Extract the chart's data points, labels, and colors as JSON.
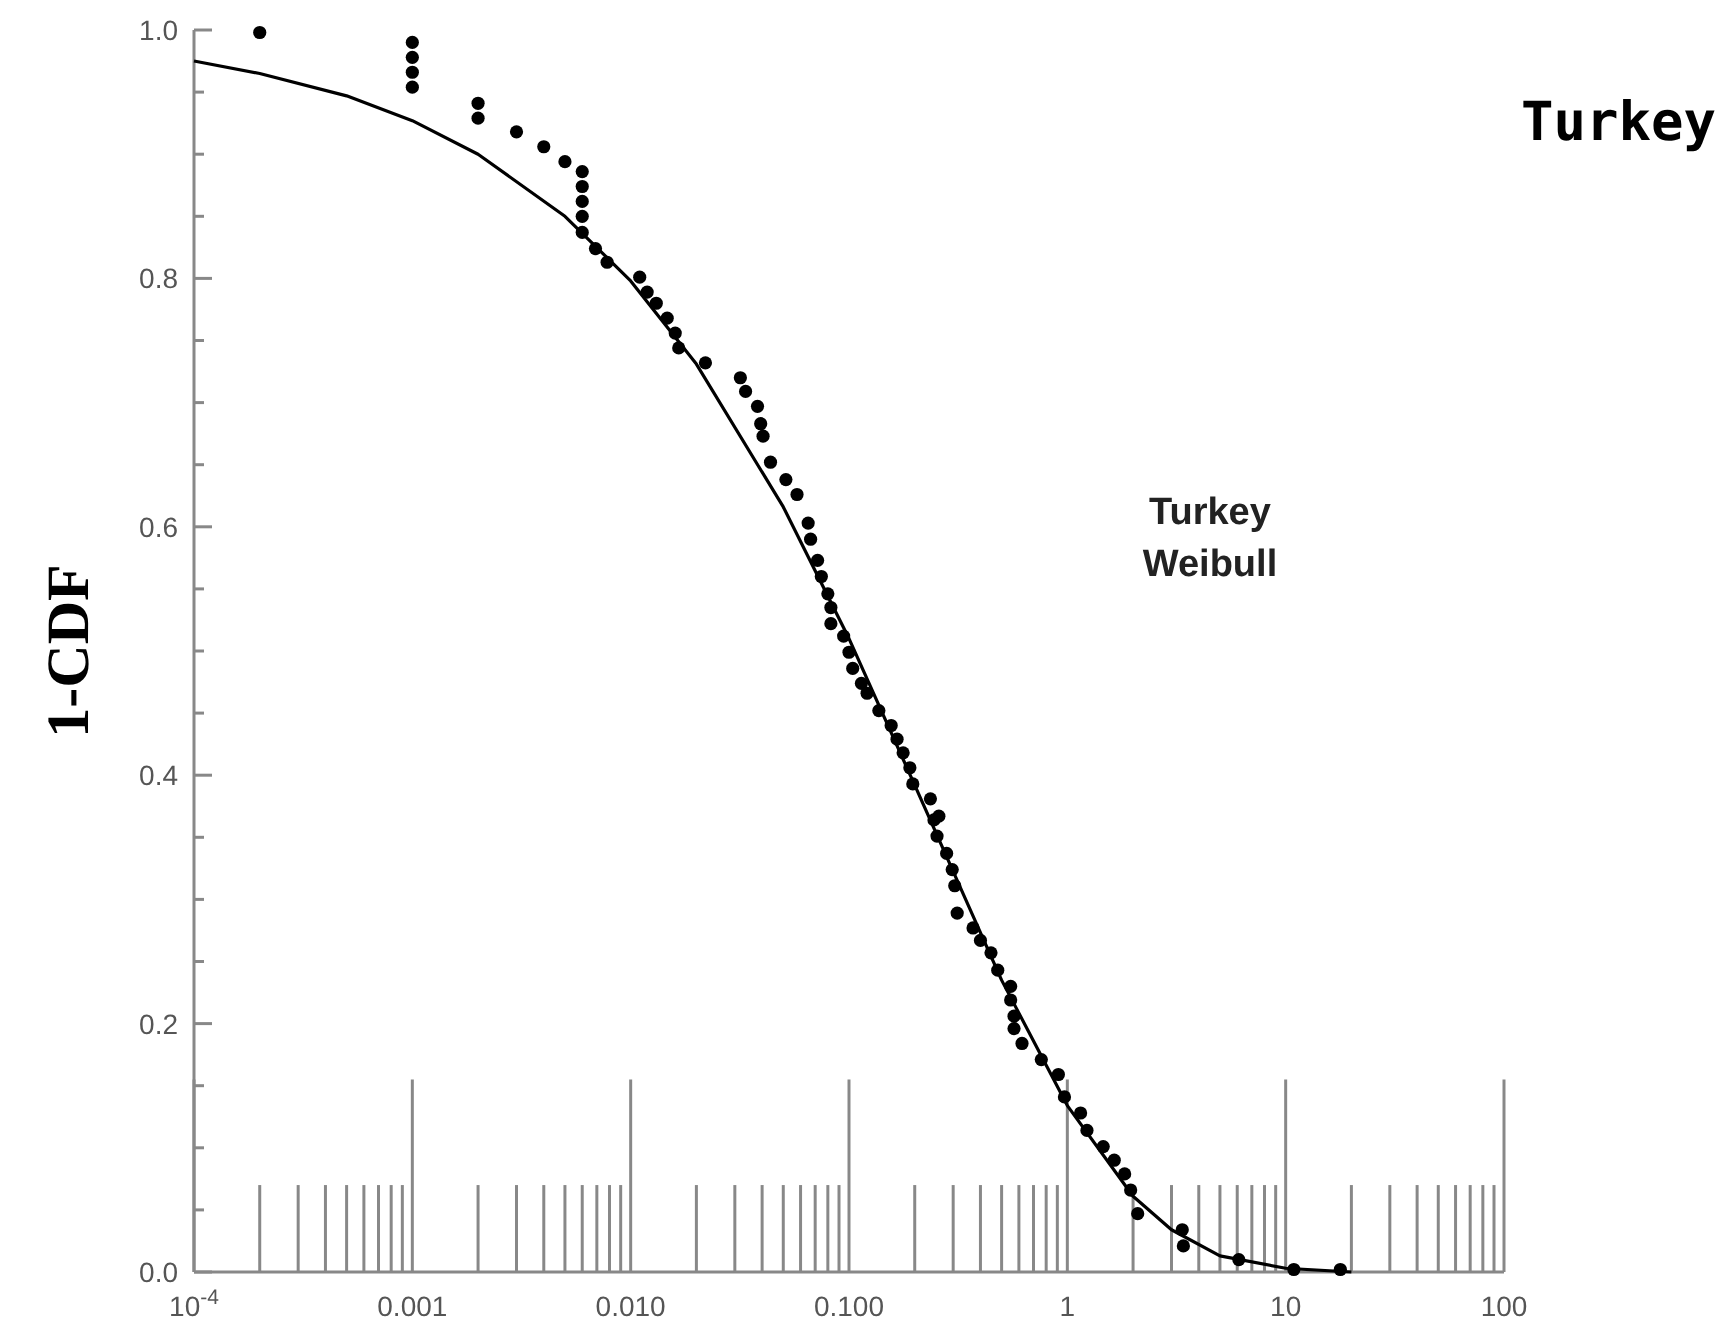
{
  "chart_data": {
    "type": "scatter",
    "title": "Turkey",
    "ylabel": "1-CDF",
    "annotations": [
      "Turkey\nWeibull"
    ],
    "log": "x",
    "grid": false,
    "xlim": [
      0.0001,
      100
    ],
    "ylim": [
      0,
      1
    ],
    "xticks": [
      {
        "value": 0.0001,
        "label": "10$^{-4}$"
      },
      {
        "value": 0.0002,
        "label": null
      },
      {
        "value": 0.0003,
        "label": null
      },
      {
        "value": 0.0004,
        "label": null
      },
      {
        "value": 0.0005,
        "label": null
      },
      {
        "value": 0.0006,
        "label": null
      },
      {
        "value": 0.0007,
        "label": null
      },
      {
        "value": 0.0008,
        "label": null
      },
      {
        "value": 0.0009,
        "label": null
      },
      {
        "value": 0.001,
        "label": "0.001"
      },
      {
        "value": 0.002,
        "label": null
      },
      {
        "value": 0.003,
        "label": null
      },
      {
        "value": 0.004,
        "label": null
      },
      {
        "value": 0.005,
        "label": null
      },
      {
        "value": 0.006,
        "label": null
      },
      {
        "value": 0.007,
        "label": null
      },
      {
        "value": 0.008,
        "label": null
      },
      {
        "value": 0.009,
        "label": null
      },
      {
        "value": 0.01,
        "label": "0.010"
      },
      {
        "value": 0.02,
        "label": null
      },
      {
        "value": 0.03,
        "label": null
      },
      {
        "value": 0.04,
        "label": null
      },
      {
        "value": 0.05,
        "label": null
      },
      {
        "value": 0.06,
        "label": null
      },
      {
        "value": 0.07,
        "label": null
      },
      {
        "value": 0.08,
        "label": null
      },
      {
        "value": 0.09,
        "label": null
      },
      {
        "value": 0.1,
        "label": "0.100"
      },
      {
        "value": 0.2,
        "label": null
      },
      {
        "value": 0.3,
        "label": null
      },
      {
        "value": 0.4,
        "label": null
      },
      {
        "value": 0.5,
        "label": null
      },
      {
        "value": 0.6,
        "label": null
      },
      {
        "value": 0.7,
        "label": null
      },
      {
        "value": 0.8,
        "label": null
      },
      {
        "value": 0.9,
        "label": null
      },
      1,
      {
        "value": 2,
        "label": null
      },
      {
        "value": 3,
        "label": null
      },
      {
        "value": 4,
        "label": null
      },
      {
        "value": 5,
        "label": null
      },
      {
        "value": 6,
        "label": null
      },
      {
        "value": 7,
        "label": null
      },
      {
        "value": 8,
        "label": null
      },
      {
        "value": 9,
        "label": null
      },
      10,
      {
        "value": 20,
        "label": null
      },
      {
        "value": 30,
        "label": null
      },
      {
        "value": 40,
        "label": null
      },
      {
        "value": 50,
        "label": null
      },
      {
        "value": 60,
        "label": null
      },
      {
        "value": 70,
        "label": null
      },
      {
        "value": 80,
        "label": null
      },
      {
        "value": 90,
        "label": null
      },
      100
    ],
    "yticks": [
      {
        "value": 0,
        "label": "0.0"
      },
      {
        "value": 0.05,
        "label": null
      },
      {
        "value": 0.1,
        "label": null
      },
      {
        "value": 0.15,
        "label": null
      },
      0.2,
      {
        "value": 0.25,
        "label": null
      },
      {
        "value": 0.3,
        "label": null
      },
      {
        "value": 0.35,
        "label": null
      },
      0.4,
      {
        "value": 0.45,
        "label": null
      },
      {
        "value": 0.5,
        "label": null
      },
      {
        "value": 0.55,
        "label": null
      },
      0.6,
      {
        "value": 0.65,
        "label": null
      },
      {
        "value": 0.7,
        "label": null
      },
      {
        "value": 0.75,
        "label": null
      },
      0.8,
      {
        "value": 0.85,
        "label": null
      },
      {
        "value": 0.9,
        "label": null
      },
      {
        "value": 0.95,
        "label": null
      },
      {
        "value": 1,
        "label": "1.0"
      }
    ],
    "series": [
      {
        "type": "scatter",
        "color": "#000000",
        "marker": "circle",
        "x": [
          0.0002,
          0.001,
          0.001,
          0.001,
          0.001,
          0.002,
          0.002,
          0.003,
          0.004,
          0.005,
          0.006,
          0.006,
          0.006,
          0.006,
          0.006,
          0.0069,
          0.0078,
          0.011,
          0.0119,
          0.0131,
          0.0147,
          0.016,
          0.0166,
          0.022,
          0.0318,
          0.0336,
          0.0381,
          0.0394,
          0.0404,
          0.0437,
          0.0514,
          0.0578,
          0.065,
          0.0667,
          0.0718,
          0.0747,
          0.08,
          0.0826,
          0.0826,
          0.0945,
          0.1,
          0.104,
          0.114,
          0.121,
          0.137,
          0.156,
          0.166,
          0.177,
          0.19,
          0.196,
          0.236,
          0.245,
          0.258,
          0.253,
          0.28,
          0.297,
          0.305,
          0.313,
          0.37,
          0.4,
          0.447,
          0.48,
          0.55,
          0.55,
          0.57,
          0.57,
          0.62,
          0.76,
          0.91,
          0.97,
          1.15,
          1.23,
          1.46,
          1.64,
          1.83,
          1.95,
          2.1,
          3.36,
          3.4,
          6.1,
          10.9,
          17.8
        ],
        "values": [
          0.998,
          0.99,
          0.978,
          0.966,
          0.954,
          0.941,
          0.929,
          0.918,
          0.906,
          0.894,
          0.886,
          0.874,
          0.862,
          0.85,
          0.837,
          0.824,
          0.813,
          0.801,
          0.789,
          0.78,
          0.768,
          0.756,
          0.744,
          0.732,
          0.72,
          0.709,
          0.697,
          0.683,
          0.673,
          0.652,
          0.638,
          0.626,
          0.603,
          0.59,
          0.573,
          0.56,
          0.546,
          0.535,
          0.522,
          0.512,
          0.499,
          0.486,
          0.474,
          0.466,
          0.452,
          0.44,
          0.429,
          0.418,
          0.406,
          0.393,
          0.381,
          0.364,
          0.367,
          0.351,
          0.337,
          0.324,
          0.311,
          0.289,
          0.277,
          0.267,
          0.257,
          0.243,
          0.23,
          0.219,
          0.206,
          0.196,
          0.184,
          0.171,
          0.159,
          0.141,
          0.128,
          0.114,
          0.101,
          0.09,
          0.079,
          0.066,
          0.047,
          0.034,
          0.021,
          0.01,
          0.002,
          0.002
        ]
      },
      {
        "type": "line",
        "color": "#000000",
        "marker": "none",
        "line_style": "solid",
        "x": [
          0.0001,
          0.0002,
          0.0005,
          0.001,
          0.002,
          0.005,
          0.01,
          0.02,
          0.05,
          0.1,
          0.2,
          0.5,
          1,
          2,
          3,
          5,
          10,
          20
        ],
        "values": [
          0.975,
          0.965,
          0.947,
          0.927,
          0.9,
          0.85,
          0.798,
          0.731,
          0.616,
          0.51,
          0.392,
          0.235,
          0.134,
          0.061,
          0.034,
          0.013,
          0.003,
          0
        ]
      }
    ]
  }
}
